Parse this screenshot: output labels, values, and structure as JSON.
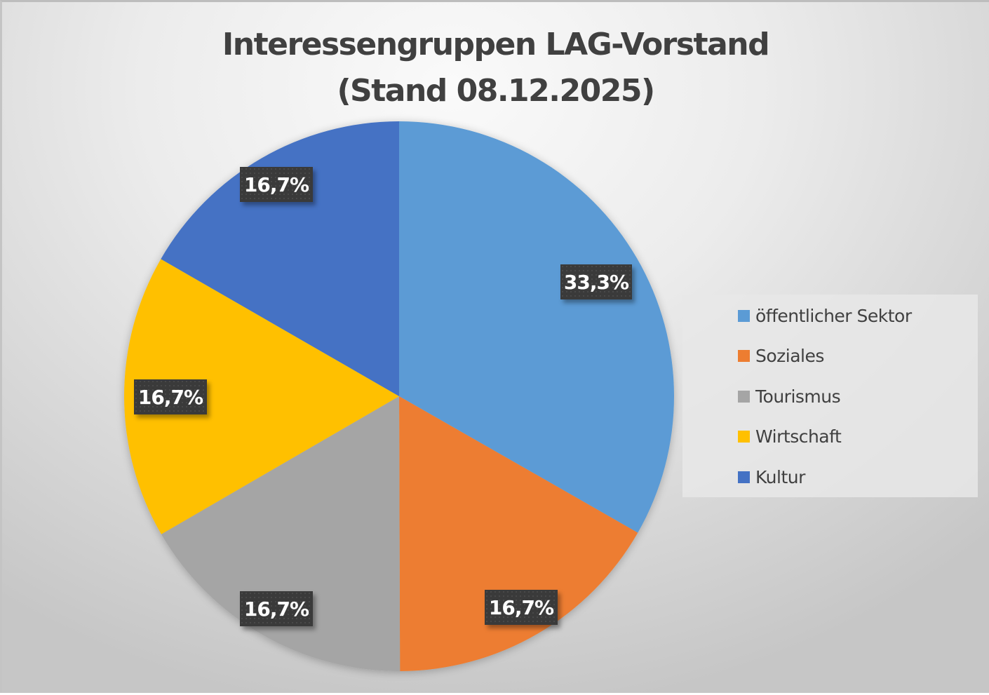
{
  "chart": {
    "title_line1": "Interessengruppen LAG-Vorstand",
    "title_line2": "(Stand 08.12.2025)"
  },
  "legend": {
    "items": [
      {
        "label": "öffentlicher Sektor",
        "color": "#5B9BD5"
      },
      {
        "label": "Soziales",
        "color": "#ED7D31"
      },
      {
        "label": "Tourismus",
        "color": "#A5A5A5"
      },
      {
        "label": "Wirtschaft",
        "color": "#FFC000"
      },
      {
        "label": "Kultur",
        "color": "#4472C4"
      }
    ]
  },
  "labels": {
    "oeffentlicher_sektor": "33,3%",
    "soziales": "16,7%",
    "tourismus": "16,7%",
    "wirtschaft": "16,7%",
    "kultur": "16,7%"
  },
  "chart_data": {
    "type": "pie",
    "title": "Interessengruppen LAG-Vorstand (Stand 08.12.2025)",
    "categories": [
      "öffentlicher Sektor",
      "Soziales",
      "Tourismus",
      "Wirtschaft",
      "Kultur"
    ],
    "values": [
      33.3,
      16.7,
      16.7,
      16.7,
      16.7
    ],
    "value_labels": [
      "33,3%",
      "16,7%",
      "16,7%",
      "16,7%",
      "16,7%"
    ],
    "colors": [
      "#5B9BD5",
      "#ED7D31",
      "#A5A5A5",
      "#FFC000",
      "#4472C4"
    ],
    "start_angle_deg": 0,
    "direction": "clockwise",
    "legend_position": "right",
    "data_labels": "percent"
  }
}
